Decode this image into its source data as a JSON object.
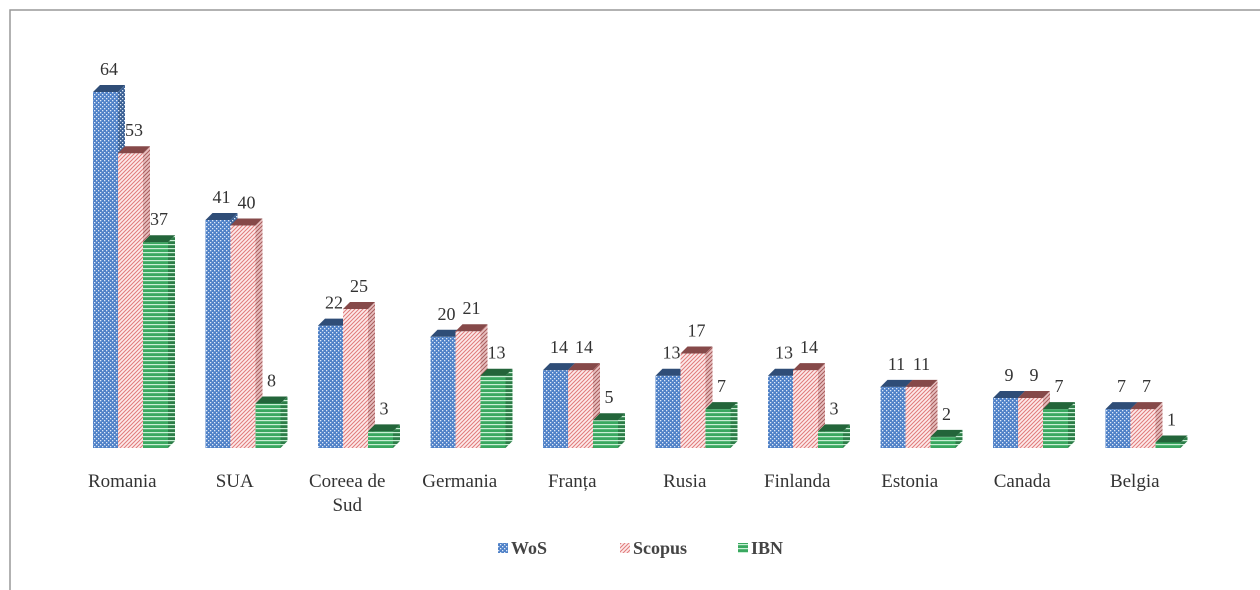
{
  "chart_data": {
    "type": "bar",
    "categories": [
      "Romania",
      "SUA",
      "Coreea de Sud",
      "Germania",
      "Franța",
      "Rusia",
      "Finlanda",
      "Estonia",
      "Canada",
      "Belgia"
    ],
    "series": [
      {
        "name": "WoS",
        "color": "#4f81c7",
        "values": [
          64,
          41,
          22,
          20,
          14,
          13,
          13,
          11,
          9,
          7
        ]
      },
      {
        "name": "Scopus",
        "color": "#e07a7a",
        "values": [
          53,
          40,
          25,
          21,
          14,
          17,
          14,
          11,
          9,
          7
        ]
      },
      {
        "name": "IBN",
        "color": "#3aa860",
        "values": [
          37,
          8,
          3,
          13,
          5,
          7,
          3,
          2,
          7,
          1
        ]
      }
    ],
    "legend": "bottom"
  }
}
